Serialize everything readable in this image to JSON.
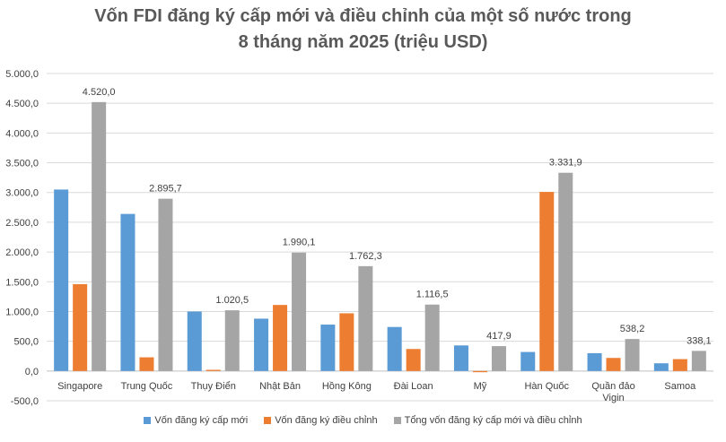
{
  "chart_data": {
    "type": "bar",
    "title_line1": "Vốn FDI đăng ký cấp mới và điều chỉnh của một số nước trong",
    "title_line2": "8 tháng năm 2025 (triệu USD)",
    "categories": [
      [
        "Singapore"
      ],
      [
        "Trung Quốc"
      ],
      [
        "Thụy Điển"
      ],
      [
        "Nhật Bản"
      ],
      [
        "Hồng Kông"
      ],
      [
        "Đài Loan"
      ],
      [
        "Mỹ"
      ],
      [
        "Hàn Quốc"
      ],
      [
        "Quần đảo",
        "Vigin"
      ],
      [
        "Samoa"
      ]
    ],
    "ylim": [
      -500,
      5000
    ],
    "yticks": [
      "-500,0",
      "0,0",
      "500,0",
      "1.000,0",
      "1.500,0",
      "2.000,0",
      "2.500,0",
      "3.000,0",
      "3.500,0",
      "4.000,0",
      "4.500,0",
      "5.000,0"
    ],
    "grid": true,
    "legend_position": "bottom",
    "series": [
      {
        "name": "Vốn đăng ký cấp mới",
        "color": "#5B9BD5",
        "values": [
          3050,
          2640,
          1000,
          880,
          780,
          740,
          430,
          320,
          300,
          130
        ]
      },
      {
        "name": "Vốn đăng ký điều chỉnh",
        "color": "#ED7D31",
        "values": [
          1460,
          230,
          20,
          1110,
          970,
          370,
          -20,
          3010,
          220,
          200
        ]
      },
      {
        "name": "Tổng vốn đăng ký cấp mới và điều chỉnh",
        "color": "#A5A5A5",
        "values": [
          4520.0,
          2895.7,
          1020.5,
          1990.1,
          1762.3,
          1116.5,
          417.9,
          3331.9,
          538.2,
          338.1
        ],
        "labels": [
          "4.520,0",
          "2.895,7",
          "1.020,5",
          "1.990,1",
          "1.762,3",
          "1.116,5",
          "417,9",
          "3.331,9",
          "538,2",
          "338,1"
        ]
      }
    ]
  }
}
